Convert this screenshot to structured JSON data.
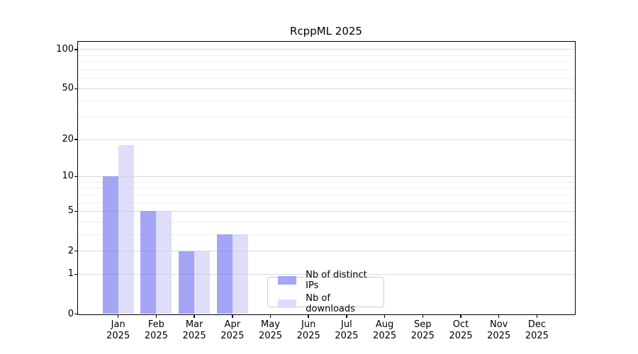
{
  "figure": {
    "title": "RcppML 2025"
  },
  "chart_data": {
    "type": "bar",
    "title": "RcppML 2025",
    "categories": [
      "Jan 2025",
      "Feb 2025",
      "Mar 2025",
      "Apr 2025",
      "May 2025",
      "Jun 2025",
      "Jul 2025",
      "Aug 2025",
      "Sep 2025",
      "Oct 2025",
      "Nov 2025",
      "Dec 2025"
    ],
    "x_tick_months": [
      "Jan",
      "Feb",
      "Mar",
      "Apr",
      "May",
      "Jun",
      "Jul",
      "Aug",
      "Sep",
      "Oct",
      "Nov",
      "Dec"
    ],
    "x_tick_year": "2025",
    "series": [
      {
        "name": "Nb of distinct IPs",
        "color": "#a6a6f4",
        "fill": "rgba(116,116,239,0.65)",
        "values": [
          10,
          5,
          2,
          3,
          0,
          0,
          0,
          0,
          0,
          0,
          0,
          0
        ]
      },
      {
        "name": "Nb of downloads",
        "color": "#dcdcf9",
        "fill": "rgba(205,205,246,0.65)",
        "values": [
          18,
          5,
          2,
          3,
          0,
          0,
          0,
          0,
          0,
          0,
          0,
          0
        ]
      }
    ],
    "yscale": "log1p",
    "yticks": [
      0,
      1,
      2,
      5,
      10,
      20,
      50,
      100
    ],
    "minor_yticks": [
      3,
      4,
      6,
      7,
      8,
      9,
      30,
      40,
      60,
      70,
      80,
      90
    ],
    "ylim": [
      0,
      115
    ],
    "xlabel": "",
    "ylabel": "",
    "grid": "horizontal major and minor",
    "legend_position": "inside bottom, left of center",
    "legend_labels": [
      "Nb of distinct IPs",
      "Nb of downloads"
    ]
  }
}
